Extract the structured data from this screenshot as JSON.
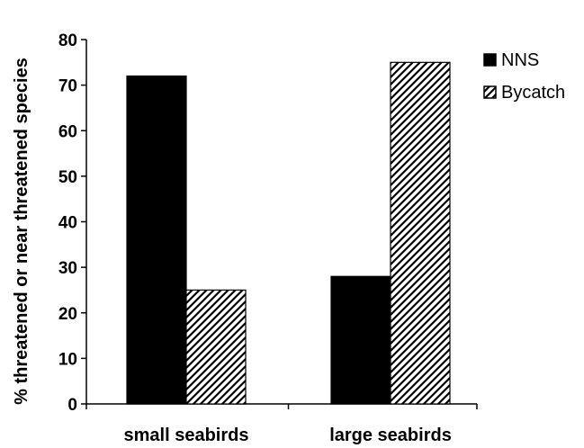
{
  "chart_data": {
    "type": "bar",
    "title": "",
    "xlabel": "",
    "ylabel": "% threatened or near threatened species",
    "categories": [
      "small seabirds",
      "large seabirds"
    ],
    "series": [
      {
        "name": "NNS",
        "values": [
          72,
          28
        ],
        "fill": "solid",
        "color": "#000000"
      },
      {
        "name": "Bycatch",
        "values": [
          25,
          75
        ],
        "fill": "diagonal-hatch",
        "color": "#000000"
      }
    ],
    "ylim": [
      0,
      80
    ],
    "yticks": [
      0,
      10,
      20,
      30,
      40,
      50,
      60,
      70,
      80
    ],
    "grid": false,
    "legend": "top-right"
  }
}
